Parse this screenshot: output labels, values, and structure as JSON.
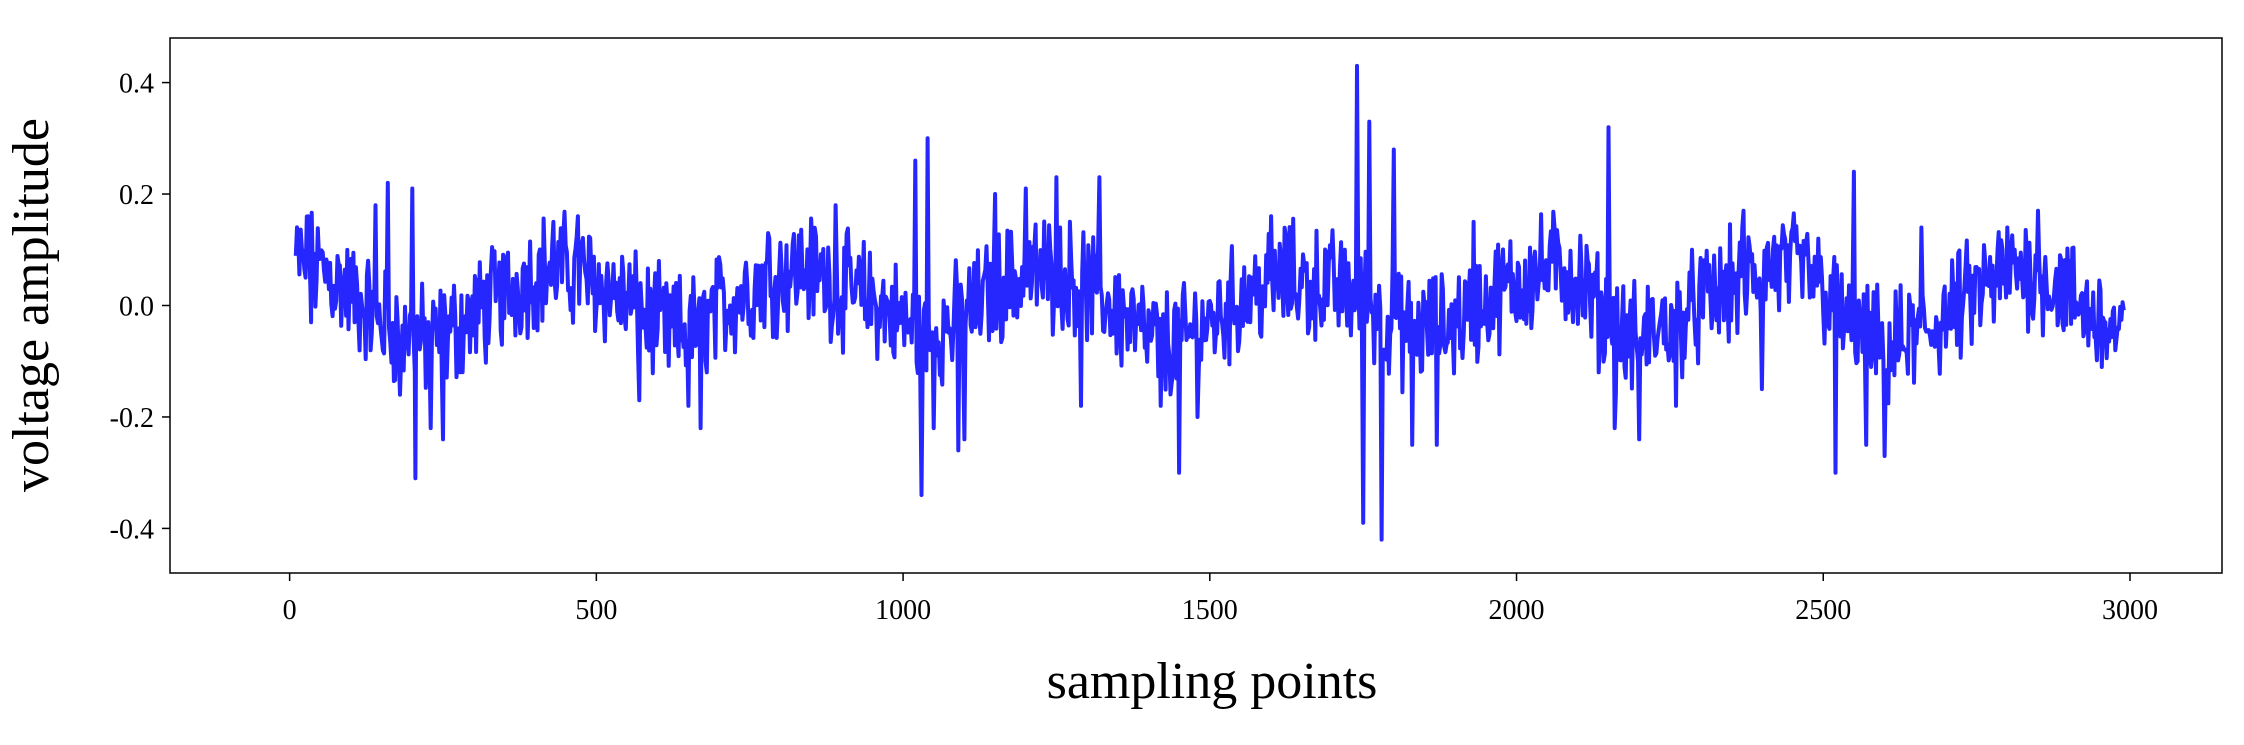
{
  "chart_data": {
    "type": "line",
    "title": "",
    "xlabel": "sampling points",
    "ylabel": "voltage amplitude",
    "xlim": [
      -195,
      3150
    ],
    "ylim": [
      -0.48,
      0.48
    ],
    "x_ticks": [
      0,
      500,
      1000,
      1500,
      2000,
      2500,
      3000
    ],
    "x_tick_labels": [
      "0",
      "500",
      "1000",
      "1500",
      "2000",
      "2500",
      "3000"
    ],
    "y_ticks": [
      0.4,
      0.2,
      0.0,
      -0.2,
      -0.4
    ],
    "y_tick_labels": [
      "0.4",
      "0.2",
      "0.0",
      "-0.2",
      "-0.4"
    ],
    "grid": false,
    "legend": "none",
    "line_color": "#0000ff",
    "series": [
      {
        "x_start": 10,
        "x_end": 2990,
        "trend": [
          [
            10,
            0.08
          ],
          [
            60,
            0.06
          ],
          [
            120,
            0.0
          ],
          [
            180,
            -0.05
          ],
          [
            230,
            -0.07
          ],
          [
            300,
            -0.02
          ],
          [
            360,
            0.03
          ],
          [
            420,
            0.07
          ],
          [
            470,
            0.06
          ],
          [
            520,
            0.03
          ],
          [
            570,
            -0.01
          ],
          [
            620,
            -0.05
          ],
          [
            660,
            -0.04
          ],
          [
            720,
            0.01
          ],
          [
            780,
            0.05
          ],
          [
            840,
            0.07
          ],
          [
            900,
            0.03
          ],
          [
            950,
            0.01
          ],
          [
            1000,
            -0.03
          ],
          [
            1040,
            -0.06
          ],
          [
            1100,
            -0.02
          ],
          [
            1160,
            0.04
          ],
          [
            1220,
            0.06
          ],
          [
            1280,
            0.05
          ],
          [
            1340,
            0.0
          ],
          [
            1400,
            -0.06
          ],
          [
            1450,
            -0.07
          ],
          [
            1500,
            -0.03
          ],
          [
            1560,
            0.02
          ],
          [
            1620,
            0.05
          ],
          [
            1680,
            0.04
          ],
          [
            1740,
            0.02
          ],
          [
            1780,
            -0.02
          ],
          [
            1820,
            -0.05
          ],
          [
            1880,
            -0.04
          ],
          [
            1940,
            0.0
          ],
          [
            2000,
            0.04
          ],
          [
            2060,
            0.07
          ],
          [
            2100,
            0.05
          ],
          [
            2140,
            -0.02
          ],
          [
            2180,
            -0.06
          ],
          [
            2240,
            -0.04
          ],
          [
            2300,
            0.0
          ],
          [
            2360,
            0.04
          ],
          [
            2420,
            0.07
          ],
          [
            2480,
            0.06
          ],
          [
            2540,
            -0.04
          ],
          [
            2600,
            -0.08
          ],
          [
            2650,
            -0.06
          ],
          [
            2700,
            -0.02
          ],
          [
            2760,
            0.03
          ],
          [
            2820,
            0.07
          ],
          [
            2880,
            0.04
          ],
          [
            2940,
            -0.02
          ],
          [
            2990,
            -0.06
          ]
        ],
        "spikes": [
          [
            30,
            0.16
          ],
          [
            35,
            -0.03
          ],
          [
            140,
            0.18
          ],
          [
            160,
            0.22
          ],
          [
            180,
            -0.16
          ],
          [
            200,
            0.21
          ],
          [
            205,
            -0.31
          ],
          [
            230,
            -0.22
          ],
          [
            250,
            -0.24
          ],
          [
            430,
            0.15
          ],
          [
            470,
            0.16
          ],
          [
            570,
            -0.17
          ],
          [
            650,
            -0.18
          ],
          [
            670,
            -0.22
          ],
          [
            780,
            0.13
          ],
          [
            890,
            0.18
          ],
          [
            1020,
            0.26
          ],
          [
            1030,
            -0.34
          ],
          [
            1040,
            0.3
          ],
          [
            1050,
            -0.22
          ],
          [
            1090,
            -0.26
          ],
          [
            1100,
            -0.24
          ],
          [
            1150,
            0.2
          ],
          [
            1200,
            0.21
          ],
          [
            1250,
            0.23
          ],
          [
            1290,
            -0.18
          ],
          [
            1320,
            0.23
          ],
          [
            1420,
            -0.18
          ],
          [
            1450,
            -0.3
          ],
          [
            1480,
            -0.2
          ],
          [
            1600,
            0.16
          ],
          [
            1660,
            -0.05
          ],
          [
            1740,
            0.43
          ],
          [
            1750,
            -0.39
          ],
          [
            1760,
            0.33
          ],
          [
            1780,
            -0.42
          ],
          [
            1800,
            0.28
          ],
          [
            1830,
            -0.25
          ],
          [
            1870,
            -0.25
          ],
          [
            1930,
            0.15
          ],
          [
            2150,
            0.32
          ],
          [
            2160,
            -0.22
          ],
          [
            2200,
            -0.24
          ],
          [
            2260,
            -0.18
          ],
          [
            2370,
            0.17
          ],
          [
            2400,
            -0.15
          ],
          [
            2520,
            -0.3
          ],
          [
            2550,
            0.24
          ],
          [
            2570,
            -0.25
          ],
          [
            2600,
            -0.27
          ],
          [
            2660,
            0.14
          ],
          [
            2800,
            0.14
          ],
          [
            2850,
            0.17
          ]
        ]
      }
    ]
  }
}
